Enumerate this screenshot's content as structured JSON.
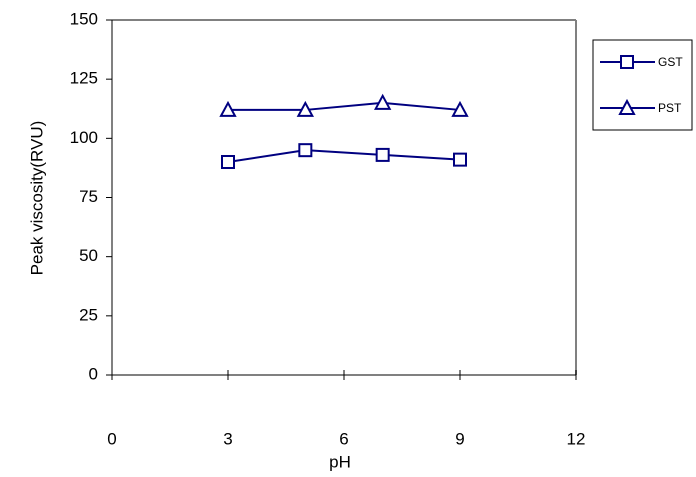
{
  "chart_data": {
    "type": "line",
    "x_label": "pH",
    "y_label": "Peak viscosity(RVU)",
    "xlim": [
      0,
      12
    ],
    "xticks": [
      0,
      3,
      6,
      9,
      12
    ],
    "ylim": [
      0,
      150
    ],
    "yticks": [
      0,
      25,
      50,
      75,
      100,
      125,
      150
    ],
    "legend": "right",
    "series": [
      {
        "name": "GST",
        "color": "#000080",
        "marker": "square",
        "x": [
          3,
          5,
          7,
          9
        ],
        "values": [
          90,
          95,
          93,
          91
        ]
      },
      {
        "name": "PST",
        "color": "#000080",
        "marker": "triangle",
        "x": [
          3,
          5,
          7,
          9
        ],
        "values": [
          112,
          112,
          115,
          112
        ]
      }
    ]
  }
}
